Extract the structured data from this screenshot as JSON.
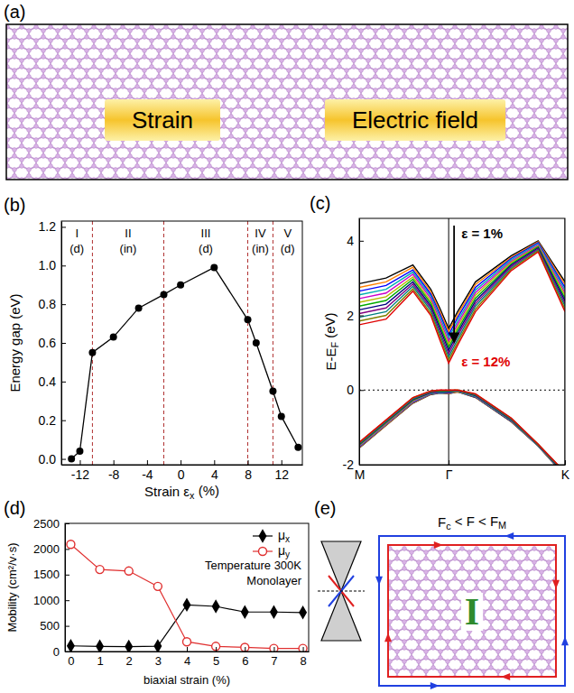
{
  "chart_data": [
    {
      "type": "line",
      "panel_label": "(b)",
      "xlabel": [
        "Strain ε",
        "x",
        " (%)"
      ],
      "ylabel": "Energy gap (eV)",
      "x": [
        -13,
        -12,
        -10.5,
        -8,
        -5,
        -2,
        0,
        4,
        8,
        9,
        11,
        12,
        14
      ],
      "series": [
        {
          "color": "#000000",
          "marker": "circle",
          "values": [
            0.0,
            0.04,
            0.55,
            0.63,
            0.78,
            0.85,
            0.9,
            0.99,
            0.72,
            0.6,
            0.35,
            0.22,
            0.06
          ]
        }
      ],
      "xlim": [
        -14.2,
        14.5
      ],
      "xticks": [
        -12,
        -8,
        -4,
        0,
        4,
        8,
        12
      ],
      "ylim": [
        -0.03,
        1.23
      ],
      "yticks": [
        {
          "value": 0,
          "label": "0.0"
        },
        0.2,
        0.4,
        0.6,
        0.8,
        {
          "value": 1,
          "label": "1.0"
        },
        1.2
      ],
      "boundaries": [
        -10.5,
        -2,
        8,
        11
      ],
      "regions": [
        {
          "label": "I",
          "gap": "(d)"
        },
        {
          "label": "II",
          "gap": "(in)"
        },
        {
          "label": "III",
          "gap": "(d)"
        },
        {
          "label": "IV",
          "gap": "(in)"
        },
        {
          "label": "V",
          "gap": "(d)"
        }
      ]
    },
    {
      "type": "line",
      "panel_label": "(c)",
      "ylabel": [
        "E-E",
        "F",
        " (eV)"
      ],
      "x": [
        0,
        0.3,
        0.6,
        0.8,
        0.9,
        1.0,
        1.1,
        1.3,
        1.7,
        2.0,
        2.3
      ],
      "xlim": [
        0,
        2.3
      ],
      "xticks": [
        {
          "value": 0,
          "label": "M"
        },
        {
          "value": 1,
          "label": "Γ"
        },
        {
          "value": 2.3,
          "label": "K"
        }
      ],
      "ylim": [
        -2,
        4.6
      ],
      "yticks": [
        -2,
        0,
        2,
        4
      ],
      "grid": true,
      "fermi_level": 0,
      "annotations": [
        {
          "text": "ε = 1%",
          "color": "#000000"
        },
        {
          "text": "ε = 12%",
          "color": "#e00000"
        }
      ],
      "series": [
        {
          "color": "#000000",
          "values": [
            2.85,
            3.0,
            3.35,
            2.7,
            2.2,
            1.65,
            2.1,
            2.9,
            3.6,
            4.0,
            2.9
          ],
          "valence": [
            -1.55,
            -0.95,
            -0.35,
            -0.12,
            -0.08,
            -0.1,
            -0.05,
            -0.2,
            -0.85,
            -1.5,
            -2.3
          ]
        },
        {
          "color": "#ff7f00",
          "values": [
            2.75,
            2.9,
            3.29,
            2.64,
            2.12,
            1.57,
            2.02,
            2.83,
            3.56,
            3.97,
            2.83
          ],
          "valence": [
            -1.54,
            -0.94,
            -0.34,
            -0.11,
            -0.07,
            -0.09,
            -0.05,
            -0.19,
            -0.84,
            -1.5,
            -2.29
          ]
        },
        {
          "color": "#0000ff",
          "values": [
            2.65,
            2.8,
            3.22,
            2.57,
            2.05,
            1.48,
            1.94,
            2.75,
            3.53,
            3.95,
            2.75
          ],
          "valence": [
            -1.52,
            -0.92,
            -0.32,
            -0.1,
            -0.07,
            -0.08,
            -0.04,
            -0.18,
            -0.83,
            -1.49,
            -2.28
          ]
        },
        {
          "color": "#00b0b0",
          "values": [
            2.55,
            2.7,
            3.16,
            2.51,
            1.97,
            1.4,
            1.85,
            2.68,
            3.49,
            3.92,
            2.68
          ],
          "valence": [
            -1.51,
            -0.91,
            -0.31,
            -0.09,
            -0.06,
            -0.07,
            -0.04,
            -0.17,
            -0.82,
            -1.49,
            -2.27
          ]
        },
        {
          "color": "#cc00cc",
          "values": [
            2.45,
            2.6,
            3.1,
            2.45,
            1.89,
            1.31,
            1.77,
            2.61,
            3.45,
            3.89,
            2.61
          ],
          "valence": [
            -1.5,
            -0.9,
            -0.3,
            -0.08,
            -0.05,
            -0.06,
            -0.03,
            -0.16,
            -0.81,
            -1.48,
            -2.26
          ]
        },
        {
          "color": "#b8b800",
          "values": [
            2.35,
            2.5,
            3.03,
            2.38,
            1.81,
            1.23,
            1.69,
            2.54,
            3.42,
            3.86,
            2.54
          ],
          "valence": [
            -1.48,
            -0.88,
            -0.28,
            -0.07,
            -0.04,
            -0.05,
            -0.03,
            -0.15,
            -0.8,
            -1.48,
            -2.25
          ]
        },
        {
          "color": "#00aa00",
          "values": [
            2.25,
            2.4,
            2.97,
            2.32,
            1.74,
            1.14,
            1.61,
            2.46,
            3.38,
            3.84,
            2.46
          ],
          "valence": [
            -1.47,
            -0.87,
            -0.27,
            -0.07,
            -0.04,
            -0.05,
            -0.02,
            -0.15,
            -0.8,
            -1.47,
            -2.25
          ]
        },
        {
          "color": "#000080",
          "values": [
            2.15,
            2.3,
            2.9,
            2.25,
            1.66,
            1.06,
            1.53,
            2.39,
            3.35,
            3.81,
            2.39
          ],
          "valence": [
            -1.45,
            -0.85,
            -0.25,
            -0.06,
            -0.03,
            -0.04,
            -0.02,
            -0.14,
            -0.79,
            -1.47,
            -2.24
          ]
        },
        {
          "color": "#800080",
          "values": [
            2.05,
            2.2,
            2.84,
            2.19,
            1.58,
            0.97,
            1.45,
            2.32,
            3.31,
            3.78,
            2.32
          ],
          "valence": [
            -1.44,
            -0.84,
            -0.24,
            -0.05,
            -0.02,
            -0.03,
            -0.01,
            -0.13,
            -0.78,
            -1.46,
            -2.23
          ]
        },
        {
          "color": "#008080",
          "values": [
            1.95,
            2.1,
            2.78,
            2.13,
            1.5,
            0.89,
            1.36,
            2.25,
            3.27,
            3.75,
            2.25
          ],
          "valence": [
            -1.43,
            -0.83,
            -0.23,
            -0.04,
            -0.01,
            -0.02,
            -0.01,
            -0.12,
            -0.77,
            -1.46,
            -2.22
          ]
        },
        {
          "color": "#808000",
          "values": [
            1.85,
            2.0,
            2.71,
            2.06,
            1.43,
            0.8,
            1.28,
            2.17,
            3.24,
            3.73,
            2.17
          ],
          "valence": [
            -1.41,
            -0.81,
            -0.21,
            -0.03,
            -0.01,
            -0.01,
            0.0,
            -0.11,
            -0.76,
            -1.45,
            -2.21
          ]
        },
        {
          "color": "#e00000",
          "values": [
            1.75,
            1.9,
            2.65,
            2.0,
            1.35,
            0.72,
            1.2,
            2.1,
            3.2,
            3.7,
            2.1
          ],
          "valence": [
            -1.4,
            -0.8,
            -0.2,
            -0.02,
            0.0,
            0.0,
            0.0,
            -0.1,
            -0.75,
            -1.45,
            -2.2
          ]
        }
      ]
    },
    {
      "type": "line",
      "panel_label": "(d)",
      "xlabel": "biaxial strain (%)",
      "ylabel": "Mobility (cm²/v·s)",
      "x": [
        0,
        1,
        2,
        3,
        4,
        5,
        6,
        7,
        8
      ],
      "xlim": [
        -0.2,
        8.2
      ],
      "xticks": [
        0,
        1,
        2,
        3,
        4,
        5,
        6,
        7,
        8
      ],
      "ylim": [
        0,
        2500
      ],
      "yticks": [
        0,
        500,
        1000,
        1500,
        2000,
        2500
      ],
      "legend": "upper-right",
      "annotations": [
        "Temperature 300K",
        "Monolayer"
      ],
      "series": [
        {
          "name": "μx",
          "color": "#000000",
          "marker": "diamond",
          "values": [
            110,
            100,
            95,
            105,
            910,
            880,
            770,
            770,
            760
          ]
        },
        {
          "name": "μy",
          "color": "#e03030",
          "marker": "circle-open",
          "values": [
            2090,
            1600,
            1570,
            1270,
            190,
            100,
            80,
            60,
            60
          ]
        }
      ]
    }
  ],
  "diagrams": {
    "a": {
      "panel_label": "(a)",
      "labels": [
        "Strain",
        "Electric field"
      ]
    },
    "e": {
      "panel_label": "(e)",
      "title": [
        "F",
        "c",
        " < F < F",
        "M"
      ],
      "center_label": "I"
    }
  }
}
